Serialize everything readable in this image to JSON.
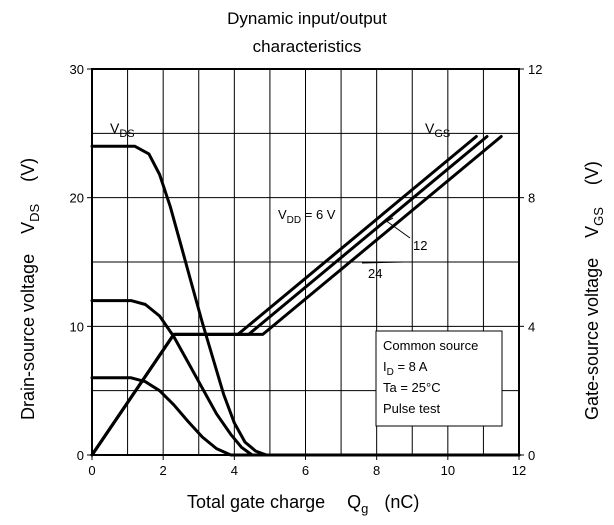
{
  "chart_data": {
    "type": "line",
    "title": "Dynamic input/output characteristics",
    "xlabel": "Total gate charge",
    "xlabel_symbol": "Q",
    "xlabel_sub": "g",
    "xlabel_unit": "(nC)",
    "y_left_label": "Drain-source voltage",
    "y_left_symbol": "V",
    "y_left_sub": "DS",
    "y_left_unit": "(V)",
    "y_right_label": "Gate-source voltage",
    "y_right_symbol": "V",
    "y_right_sub": "GS",
    "y_right_unit": "(V)",
    "xlim": [
      0,
      12
    ],
    "ylim_left": [
      0,
      30
    ],
    "ylim_right": [
      0,
      12
    ],
    "xticks": [
      0,
      2,
      4,
      6,
      8,
      10,
      12
    ],
    "yticks_left": [
      0,
      10,
      20,
      30
    ],
    "yticks_right": [
      0,
      4,
      8,
      12
    ],
    "grid": true,
    "curve_labels": {
      "vds": {
        "main": "V",
        "sub": "DS"
      },
      "vgs": {
        "main": "V",
        "sub": "GS"
      },
      "vdd_main": "V",
      "vdd_sub": "DD",
      "vdd_value": " = 6 V",
      "v12": "12",
      "v24": "24"
    },
    "conditions": {
      "line1": "Common source",
      "line2_main": "I",
      "line2_sub": "D",
      "line2_rest": " = 8 A",
      "line3": "Ta = 25°C",
      "line4": "Pulse test"
    },
    "series": [
      {
        "axis": "left",
        "vdd": 24,
        "x": [
          0,
          1.2,
          1.6,
          1.9,
          2.2,
          2.5,
          2.8,
          3.1,
          3.4,
          3.7,
          4.0,
          4.3,
          4.6,
          4.9,
          12
        ],
        "y": [
          24,
          24,
          23.4,
          21.8,
          19.3,
          16.3,
          13.3,
          10.3,
          7.5,
          4.7,
          2.5,
          1.0,
          0.3,
          0,
          0
        ]
      },
      {
        "axis": "left",
        "vdd": 12,
        "x": [
          0,
          1.1,
          1.5,
          1.9,
          2.3,
          2.7,
          3.1,
          3.5,
          3.9,
          4.2,
          4.5,
          12
        ],
        "y": [
          12,
          12,
          11.7,
          10.8,
          9.2,
          7.2,
          5.2,
          3.2,
          1.6,
          0.6,
          0,
          0
        ]
      },
      {
        "axis": "left",
        "vdd": 6,
        "x": [
          0,
          1.1,
          1.5,
          1.9,
          2.3,
          2.7,
          3.1,
          3.5,
          3.9,
          12
        ],
        "y": [
          6,
          6,
          5.7,
          5.0,
          3.9,
          2.6,
          1.4,
          0.5,
          0,
          0
        ]
      },
      {
        "axis": "right",
        "vdd": 6,
        "x": [
          0,
          2.3,
          4.1,
          10.8
        ],
        "y": [
          0,
          3.75,
          3.75,
          9.9
        ]
      },
      {
        "axis": "right",
        "vdd": 12,
        "x": [
          0,
          2.3,
          4.4,
          11.1
        ],
        "y": [
          0,
          3.75,
          3.75,
          9.9
        ]
      },
      {
        "axis": "right",
        "vdd": 24,
        "x": [
          0,
          2.3,
          4.8,
          11.5
        ],
        "y": [
          0,
          3.75,
          3.75,
          9.9
        ]
      }
    ]
  }
}
